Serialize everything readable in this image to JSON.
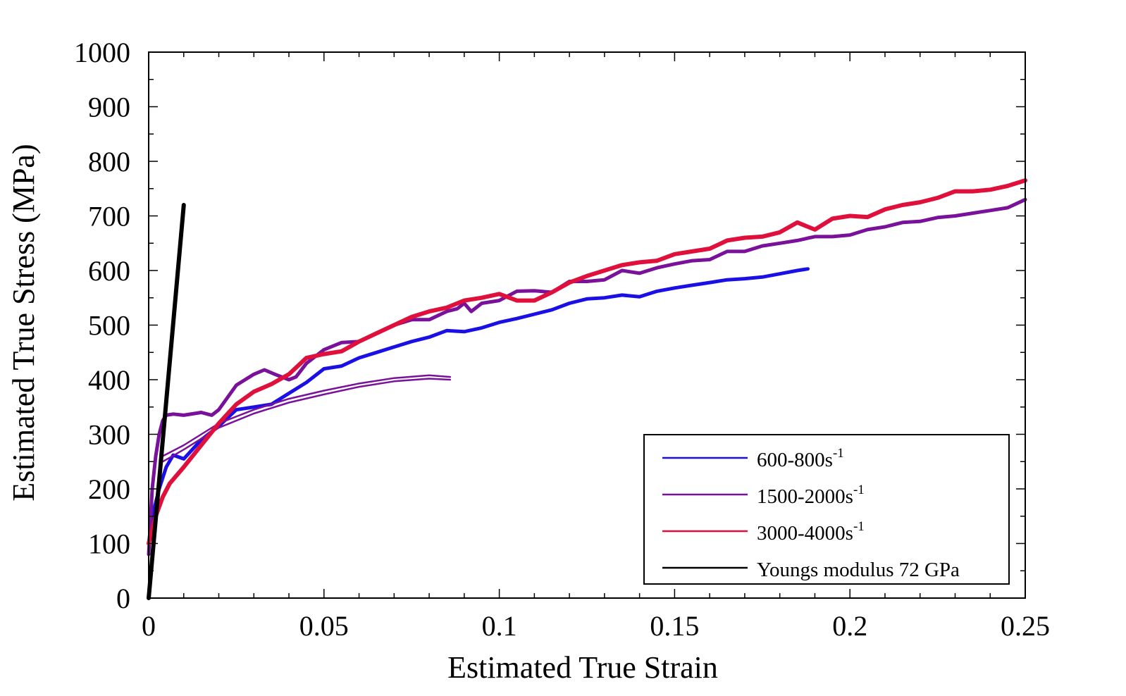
{
  "chart_data": {
    "type": "line",
    "xlabel": "Estimated True Strain",
    "ylabel": "Estimated True Stress (MPa)",
    "xlim": [
      0,
      0.25
    ],
    "ylim": [
      0,
      1000
    ],
    "x_ticks": [
      0,
      0.05,
      0.1,
      0.15,
      0.2,
      0.25
    ],
    "x_tick_labels": [
      "0",
      "0.05",
      "0.1",
      "0.15",
      "0.2",
      "0.25"
    ],
    "y_ticks": [
      0,
      100,
      200,
      300,
      400,
      500,
      600,
      700,
      800,
      900,
      1000
    ],
    "y_tick_labels": [
      "0",
      "100",
      "200",
      "300",
      "400",
      "500",
      "600",
      "700",
      "800",
      "900",
      "1000"
    ],
    "grid": false,
    "legend_position": "bottom-right",
    "legend": [
      {
        "base": "600-800s",
        "sup": "-1",
        "color": "#1a10e6"
      },
      {
        "base": "1500-2000s",
        "sup": "-1",
        "color": "#7a119a"
      },
      {
        "base": "3000-4000s",
        "sup": "-1",
        "color": "#e0103c"
      },
      {
        "base": "Youngs modulus 72 GPa",
        "sup": "",
        "color": "#000000"
      }
    ],
    "series": [
      {
        "legend_index": 0,
        "color": "#1a10e6",
        "width": 5,
        "x": [
          0,
          0.001,
          0.003,
          0.005,
          0.007,
          0.01,
          0.015,
          0.02,
          0.025,
          0.03,
          0.035,
          0.04,
          0.045,
          0.05,
          0.055,
          0.06,
          0.065,
          0.07,
          0.075,
          0.08,
          0.085,
          0.09,
          0.095,
          0.1,
          0.105,
          0.11,
          0.115,
          0.12,
          0.125,
          0.13,
          0.135,
          0.14,
          0.145,
          0.15,
          0.155,
          0.16,
          0.165,
          0.17,
          0.175,
          0.18,
          0.185,
          0.188
        ],
        "y": [
          100,
          150,
          200,
          240,
          262,
          255,
          290,
          315,
          345,
          350,
          355,
          375,
          395,
          420,
          425,
          440,
          450,
          460,
          470,
          478,
          490,
          488,
          495,
          505,
          512,
          520,
          528,
          540,
          548,
          550,
          555,
          552,
          562,
          568,
          573,
          578,
          583,
          585,
          588,
          594,
          600,
          603
        ]
      },
      {
        "legend_index": 1,
        "color": "#7a119a",
        "width": 5,
        "x": [
          0,
          0.001,
          0.002,
          0.003,
          0.004,
          0.005,
          0.007,
          0.01,
          0.015,
          0.018,
          0.02,
          0.025,
          0.03,
          0.033,
          0.036,
          0.04,
          0.042,
          0.045,
          0.05,
          0.055,
          0.06,
          0.065,
          0.07,
          0.075,
          0.08,
          0.085,
          0.088,
          0.09,
          0.092,
          0.095,
          0.1,
          0.105,
          0.11,
          0.115,
          0.12,
          0.125,
          0.13,
          0.135,
          0.14,
          0.145,
          0.15,
          0.155,
          0.16,
          0.165,
          0.17,
          0.175,
          0.18,
          0.185,
          0.19,
          0.195,
          0.2,
          0.205,
          0.21,
          0.215,
          0.22,
          0.225,
          0.23,
          0.235,
          0.24,
          0.245,
          0.25
        ],
        "y": [
          80,
          200,
          260,
          300,
          325,
          335,
          337,
          335,
          340,
          335,
          345,
          390,
          410,
          418,
          410,
          400,
          405,
          430,
          455,
          468,
          470,
          485,
          500,
          510,
          510,
          525,
          530,
          540,
          525,
          540,
          545,
          562,
          563,
          560,
          580,
          580,
          583,
          600,
          595,
          605,
          612,
          618,
          620,
          635,
          635,
          645,
          650,
          655,
          662,
          662,
          665,
          675,
          680,
          688,
          690,
          697,
          700,
          705,
          710,
          715,
          730
        ]
      },
      {
        "legend_index": 1,
        "color": "#7a119a",
        "width": 2.5,
        "x": [
          0.004,
          0.01,
          0.02,
          0.03,
          0.04,
          0.05,
          0.06,
          0.07,
          0.08,
          0.086
        ],
        "y": [
          260,
          280,
          320,
          345,
          365,
          380,
          393,
          403,
          408,
          405
        ]
      },
      {
        "legend_index": 1,
        "color": "#7a119a",
        "width": 2.5,
        "x": [
          0.004,
          0.01,
          0.02,
          0.03,
          0.04,
          0.05,
          0.06,
          0.07,
          0.08,
          0.086
        ],
        "y": [
          250,
          272,
          312,
          338,
          358,
          373,
          387,
          397,
          402,
          400
        ]
      },
      {
        "legend_index": 2,
        "color": "#e0103c",
        "width": 6,
        "x": [
          0,
          0.002,
          0.004,
          0.006,
          0.01,
          0.015,
          0.02,
          0.025,
          0.03,
          0.035,
          0.04,
          0.045,
          0.05,
          0.055,
          0.06,
          0.065,
          0.07,
          0.075,
          0.08,
          0.085,
          0.09,
          0.095,
          0.1,
          0.105,
          0.11,
          0.115,
          0.12,
          0.125,
          0.13,
          0.135,
          0.14,
          0.145,
          0.15,
          0.155,
          0.16,
          0.165,
          0.17,
          0.175,
          0.18,
          0.185,
          0.19,
          0.195,
          0.2,
          0.205,
          0.21,
          0.215,
          0.22,
          0.225,
          0.23,
          0.235,
          0.24,
          0.245,
          0.25
        ],
        "y": [
          100,
          150,
          185,
          210,
          240,
          280,
          320,
          355,
          378,
          392,
          410,
          440,
          447,
          452,
          470,
          485,
          500,
          515,
          525,
          532,
          545,
          550,
          557,
          545,
          545,
          560,
          578,
          590,
          600,
          610,
          615,
          618,
          630,
          635,
          640,
          655,
          660,
          662,
          670,
          688,
          675,
          695,
          700,
          698,
          712,
          720,
          725,
          733,
          745,
          745,
          748,
          755,
          765
        ]
      },
      {
        "legend_index": 3,
        "color": "#000000",
        "width": 6,
        "x": [
          0,
          0.01
        ],
        "y": [
          0,
          720
        ]
      }
    ]
  }
}
